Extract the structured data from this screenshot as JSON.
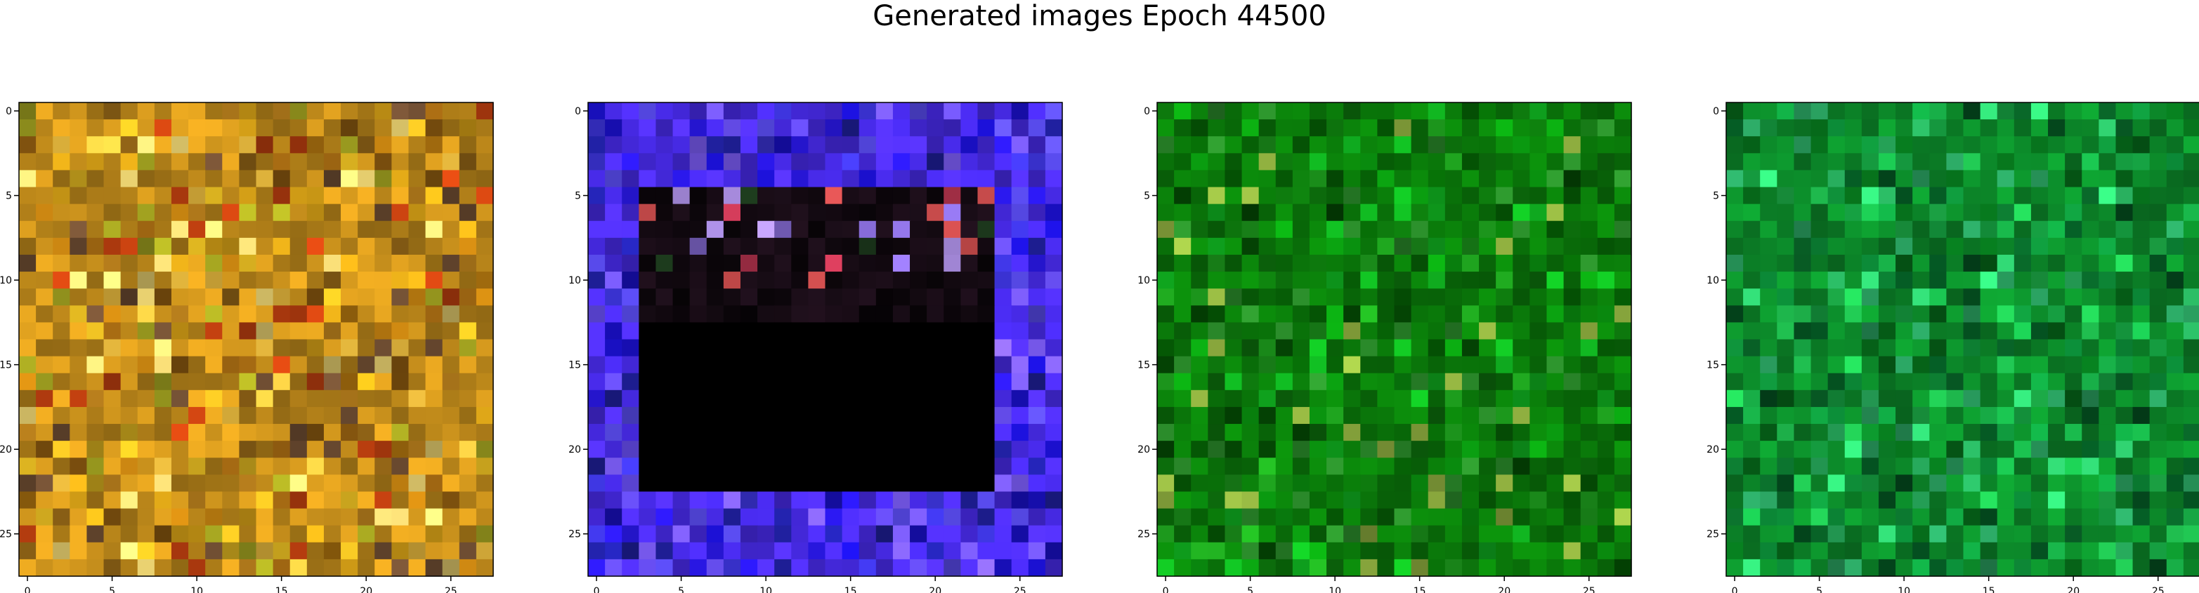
{
  "title": "Generated images Epoch 44500",
  "chart_data": [
    {
      "type": "heatmap",
      "grid": false,
      "shape": [
        28,
        28
      ],
      "xlim": [
        -0.5,
        27.5
      ],
      "ylim": [
        27.5,
        -0.5
      ],
      "xticks": [
        "0",
        "5",
        "10",
        "15",
        "20",
        "25"
      ],
      "yticks": [
        "0",
        "5",
        "10",
        "15",
        "20",
        "25"
      ],
      "base_color": "#c8901c",
      "speckle_colors": [
        "#e0a818",
        "#b87a10",
        "#d8b020",
        "#9a6a18",
        "#f0c040",
        "#8c5a10",
        "#c04010",
        "#e8d070",
        "#6a4a30",
        "#a0a020"
      ]
    },
    {
      "type": "heatmap",
      "grid": false,
      "shape": [
        28,
        28
      ],
      "xlim": [
        -0.5,
        27.5
      ],
      "ylim": [
        27.5,
        -0.5
      ],
      "xticks": [
        "0",
        "5",
        "10",
        "15",
        "20",
        "25"
      ],
      "yticks": [
        "0",
        "5",
        "10",
        "15",
        "20",
        "25"
      ],
      "base_color": "#4a2cf0",
      "dark_region_color": "#000000",
      "speckle_colors": [
        "#2a18e8",
        "#6a50f8",
        "#1a10c8",
        "#8060ff",
        "#3c34d8",
        "#5a4cf0",
        "#2020a0"
      ]
    },
    {
      "type": "heatmap",
      "grid": false,
      "shape": [
        28,
        28
      ],
      "xlim": [
        -0.5,
        27.5
      ],
      "ylim": [
        27.5,
        -0.5
      ],
      "xticks": [
        "0",
        "5",
        "10",
        "15",
        "20",
        "25"
      ],
      "yticks": [
        "0",
        "5",
        "10",
        "15",
        "20",
        "25"
      ],
      "base_color": "#0a7a0a",
      "speckle_colors": [
        "#0a9a10",
        "#066006",
        "#10b020",
        "#044a04",
        "#2a8a2a",
        "#1ea01e",
        "#0c6c0c",
        "#90b040"
      ]
    },
    {
      "type": "heatmap",
      "grid": false,
      "shape": [
        28,
        28
      ],
      "xlim": [
        -0.5,
        27.5
      ],
      "ylim": [
        27.5,
        -0.5
      ],
      "xticks": [
        "0",
        "5",
        "10",
        "15",
        "20",
        "25"
      ],
      "yticks": [
        "0",
        "5",
        "10",
        "15",
        "20",
        "25"
      ],
      "base_color": "#0c8a2a",
      "speckle_colors": [
        "#10a040",
        "#066a1a",
        "#20c050",
        "#045020",
        "#2aa060",
        "#18b048",
        "#0a7830",
        "#30d070"
      ]
    }
  ]
}
